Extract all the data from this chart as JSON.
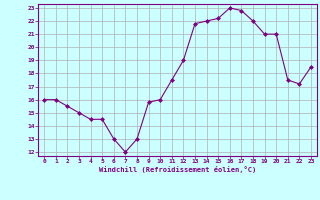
{
  "data_x": [
    0,
    1,
    2,
    3,
    4,
    5,
    6,
    7,
    8,
    9,
    10,
    11,
    12,
    13,
    14,
    15,
    16,
    17,
    18,
    19,
    20,
    21,
    22,
    23
  ],
  "data_y": [
    16,
    16,
    15.5,
    15,
    14.5,
    14.5,
    13,
    12,
    13,
    15.8,
    16,
    17.5,
    19,
    21.8,
    22,
    22.2,
    23,
    22.8,
    22,
    21,
    21,
    17.5,
    17.2,
    18.5
  ],
  "line_color": "#800080",
  "marker_color": "#800080",
  "bg_color": "#ccffff",
  "grid_color": "#b0b0b0",
  "text_color": "#800080",
  "xlabel": "Windchill (Refroidissement éolien,°C)",
  "ylim": [
    12,
    23
  ],
  "xlim": [
    -0.5,
    23.5
  ],
  "yticks": [
    12,
    13,
    14,
    15,
    16,
    17,
    18,
    19,
    20,
    21,
    22,
    23
  ],
  "xticks": [
    0,
    1,
    2,
    3,
    4,
    5,
    6,
    7,
    8,
    9,
    10,
    11,
    12,
    13,
    14,
    15,
    16,
    17,
    18,
    19,
    20,
    21,
    22,
    23
  ]
}
